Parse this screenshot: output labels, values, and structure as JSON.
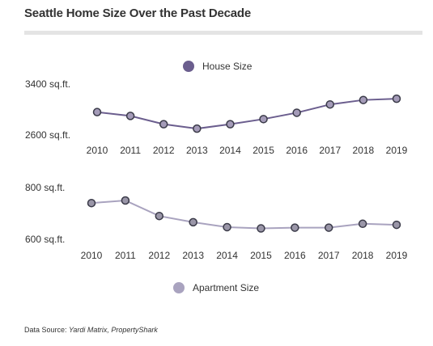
{
  "title": "Seattle Home Size Over the Past Decade",
  "source": {
    "label": "Data Source: ",
    "value": "Yardi Matrix, PropertyShark"
  },
  "colors": {
    "house": "#6b5e8e",
    "house_point": "#a49bb8",
    "apartment": "#a9a3bf",
    "apartment_point": "#9a96a8",
    "point_stroke": "#3a3a48"
  },
  "chart_data": [
    {
      "type": "line",
      "title": "",
      "legend": {
        "entry": "House Size",
        "placement": "top-center"
      },
      "x": [
        "2010",
        "2011",
        "2012",
        "2013",
        "2014",
        "2015",
        "2016",
        "2017",
        "2018",
        "2019"
      ],
      "series": [
        {
          "name": "House Size",
          "values": [
            2960,
            2900,
            2770,
            2700,
            2770,
            2850,
            2950,
            3080,
            3150,
            3170
          ]
        }
      ],
      "yticks": [
        {
          "value": 3400,
          "label": "3400 sq.ft."
        },
        {
          "value": 2600,
          "label": "2600 sq.ft."
        }
      ],
      "ylim": [
        2600,
        3400
      ],
      "grid": false
    },
    {
      "type": "line",
      "title": "",
      "legend": {
        "entry": "Apartment Size",
        "placement": "bottom-center"
      },
      "x": [
        "2010",
        "2011",
        "2012",
        "2013",
        "2014",
        "2015",
        "2016",
        "2017",
        "2018",
        "2019"
      ],
      "series": [
        {
          "name": "Apartment Size",
          "values": [
            740,
            750,
            690,
            666,
            647,
            642,
            645,
            645,
            660,
            656
          ]
        }
      ],
      "yticks": [
        {
          "value": 800,
          "label": "800 sq.ft."
        },
        {
          "value": 600,
          "label": "600 sq.ft."
        }
      ],
      "ylim": [
        600,
        800
      ],
      "grid": false
    }
  ]
}
